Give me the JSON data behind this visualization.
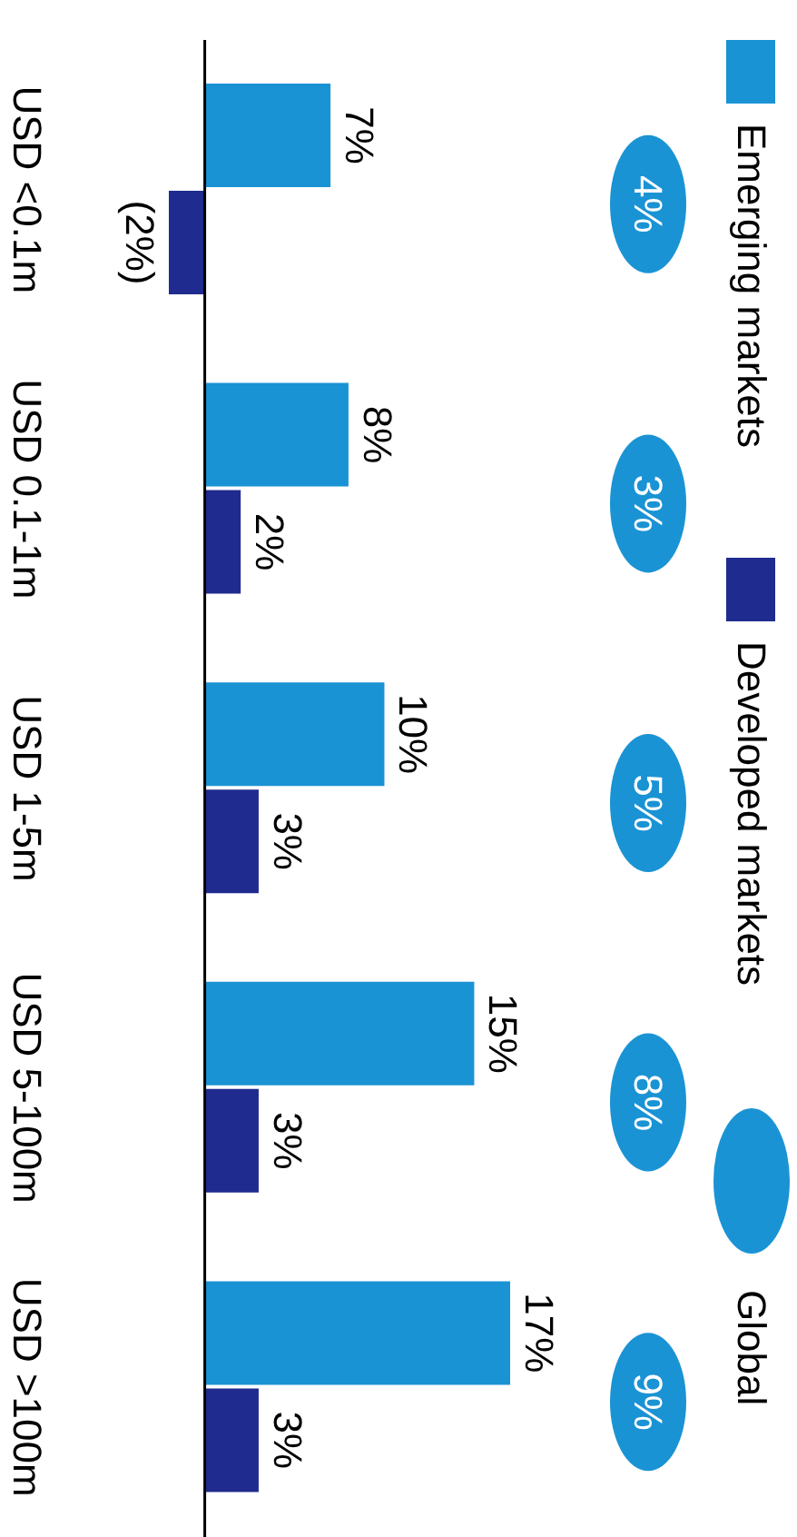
{
  "chart_data": {
    "type": "bar",
    "orientation": "horizontal",
    "categories": [
      "USD <0.1m",
      "USD 0.1-1m",
      "USD 1-5m",
      "USD 5-100m",
      "USD >100m"
    ],
    "series": [
      {
        "name": "Emerging markets",
        "color": "#1a93d4",
        "values": [
          7,
          8,
          10,
          15,
          17
        ],
        "value_labels": [
          "7%",
          "8%",
          "10%",
          "15%",
          "17%"
        ]
      },
      {
        "name": "Developed markets",
        "color": "#1f2b8e",
        "values": [
          -2,
          2,
          3,
          3,
          3
        ],
        "value_labels": [
          "(2%)",
          "2%",
          "3%",
          "3%",
          "3%"
        ]
      }
    ],
    "annotations": [
      "Global",
      "4%",
      "3%",
      "5%",
      "8%",
      "9%"
    ],
    "legend": "right"
  }
}
